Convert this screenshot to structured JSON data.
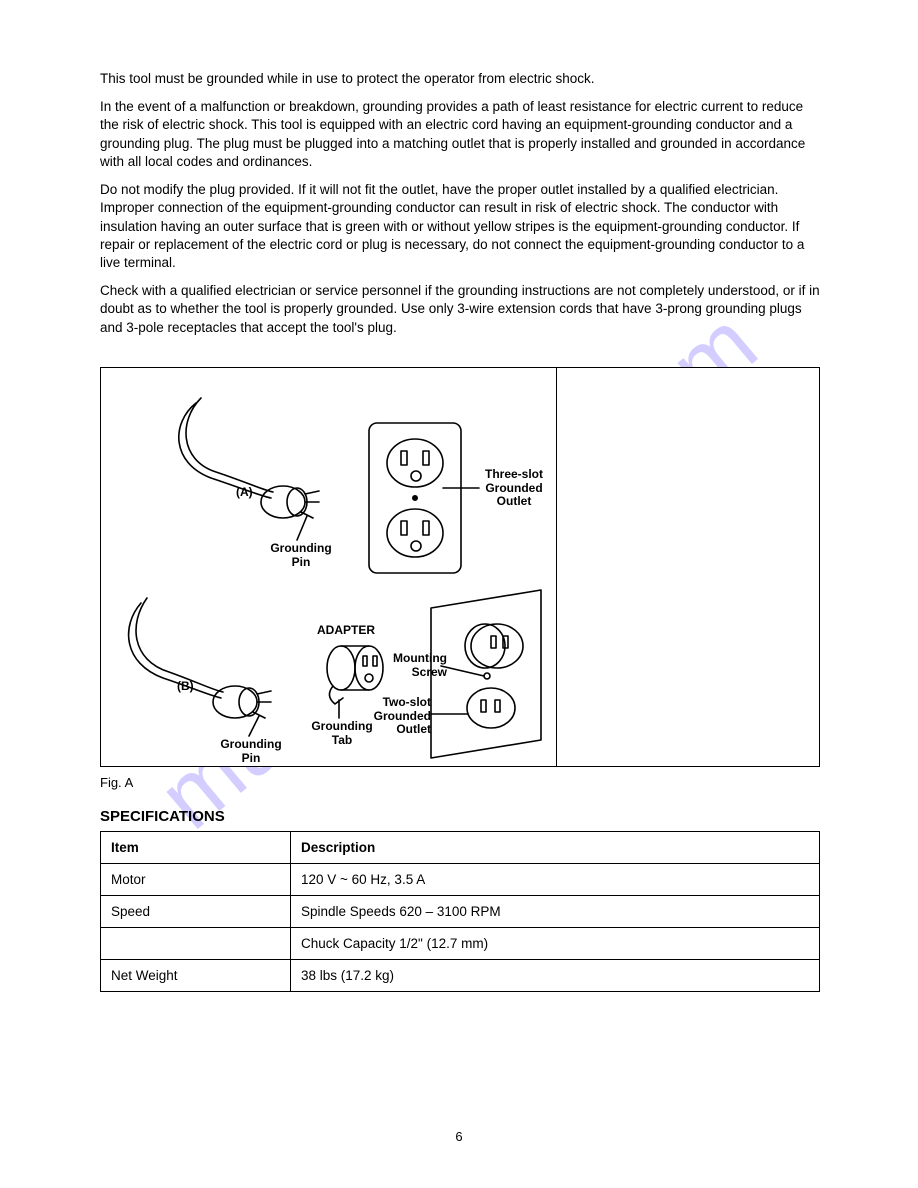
{
  "page": {
    "paragraphs": {
      "p1": "This tool must be grounded while in use to protect the operator from electric shock.",
      "p2": "In the event of a malfunction or breakdown, grounding provides a path of least resistance for electric current to reduce the risk of electric shock. This tool is equipped with an electric cord having an equipment-grounding conductor and a grounding plug. The plug must be plugged into a matching outlet that is properly installed and grounded in accordance with all local codes and ordinances.",
      "p3": "Do not modify the plug provided. If it will not fit the outlet, have the proper outlet installed by a qualified electrician. Improper connection of the equipment-grounding conductor can result in risk of electric shock. The conductor with insulation having an outer surface that is green with or without yellow stripes is the equipment-grounding conductor. If repair or replacement of the electric cord or plug is necessary, do not connect the equipment-grounding conductor to a live terminal.",
      "p4": "Check with a qualified electrician or service personnel if the grounding instructions are not completely understood, or if in doubt as to whether the tool is properly grounded. Use only 3-wire extension cords that have 3-prong grounding plugs and 3-pole receptacles that accept the tool's plug."
    },
    "figure": {
      "label_A": "(A)",
      "label_B": "(B)",
      "grounding_pin_a": "Grounding\nPin",
      "grounding_pin_b": "Grounding\nPin",
      "adapter": "ADAPTER",
      "grounding_tab": "Grounding\nTab",
      "mounting_screw": "Mounting\nScrew",
      "three_slot": "Three-slot\nGrounded\nOutlet",
      "two_slot": "Two-slot\nGrounded\nOutlet",
      "caption": "Fig. A"
    },
    "spec": {
      "title": "SPECIFICATIONS",
      "rows": [
        [
          "Item",
          "Description"
        ],
        [
          "Motor",
          "120 V ~ 60 Hz, 3.5 A"
        ],
        [
          "Speed",
          "Spindle Speeds 620 – 3100 RPM"
        ],
        [
          "",
          "Chuck Capacity 1/2\" (12.7 mm)"
        ],
        [
          "Net Weight",
          "38 lbs (17.2 kg)"
        ]
      ]
    },
    "page_number": "6"
  },
  "style": {
    "text_color": "#000000",
    "bg_color": "#ffffff",
    "border_color": "#000000",
    "watermark_color": "#8e7fff",
    "font_body_pt": 13.5,
    "font_label_pt": 12
  }
}
